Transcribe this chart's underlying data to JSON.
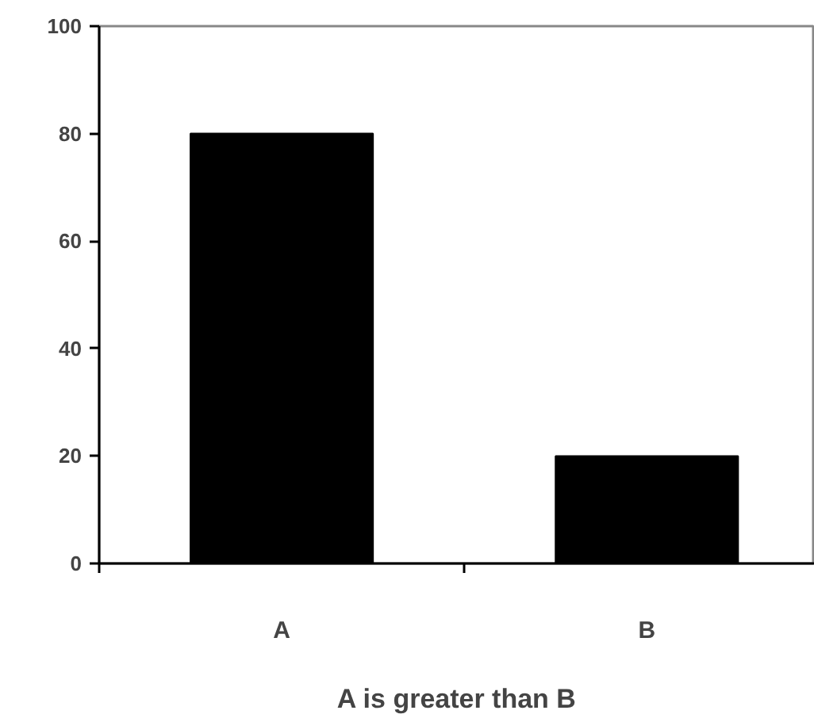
{
  "chart_data": {
    "type": "bar",
    "xlabel": "A is greater than B",
    "categories": [
      "A",
      "B"
    ],
    "values": [
      80,
      20
    ],
    "color": "#000000",
    "ylim": [
      0,
      100
    ],
    "yticks": [
      0,
      20,
      40,
      60,
      80,
      100
    ]
  }
}
